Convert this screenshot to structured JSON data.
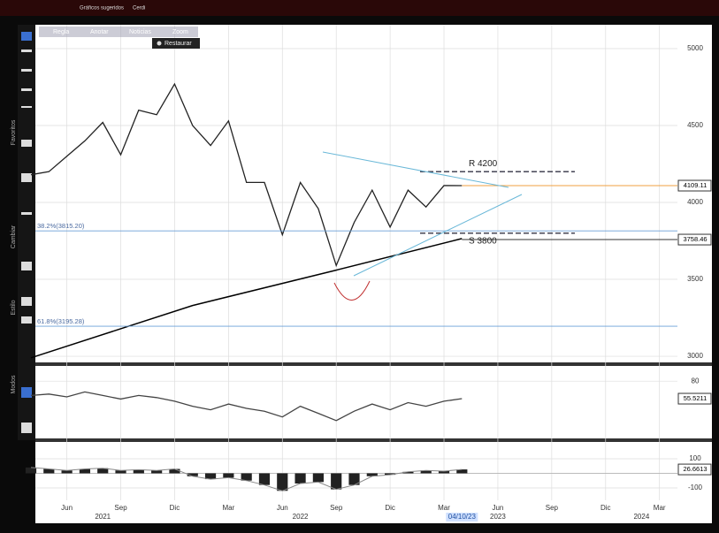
{
  "ui": {
    "tabs": [
      "Gráficos sugeridos",
      "Cerdi"
    ],
    "tools": [
      "Regla",
      "Anotar",
      "Noticias",
      "Zoom"
    ],
    "restore": "Restaurar",
    "side_labels": [
      "Favoritos",
      "Cambiar",
      "Estilo",
      "Modos"
    ],
    "cursor_date": "04/10/23"
  },
  "chart_data": [
    {
      "type": "line",
      "color": "#222222",
      "x": [
        "2021-04",
        "2021-05",
        "2021-06",
        "2021-07",
        "2021-08",
        "2021-09",
        "2021-10",
        "2021-11",
        "2021-12",
        "2022-01",
        "2022-02",
        "2022-03",
        "2022-04",
        "2022-05",
        "2022-06",
        "2022-07",
        "2022-08",
        "2022-09",
        "2022-10",
        "2022-11",
        "2022-12",
        "2023-01",
        "2023-02",
        "2023-03",
        "2023-04"
      ],
      "values": [
        4180,
        4200,
        4300,
        4400,
        4520,
        4310,
        4600,
        4570,
        4770,
        4500,
        4370,
        4530,
        4130,
        4130,
        3790,
        4130,
        3960,
        3590,
        3870,
        4080,
        3840,
        4080,
        3970,
        4110,
        4109.11
      ],
      "xlim": [
        "2021-04",
        "2024-04"
      ],
      "xticks": [
        {
          "value": "2021-06",
          "label": "Jun"
        },
        {
          "value": "2021-09",
          "label": "Sep"
        },
        {
          "value": "2021-12",
          "label": "Dic"
        },
        {
          "value": "2022-03",
          "label": "Mar"
        },
        {
          "value": "2022-06",
          "label": "Jun"
        },
        {
          "value": "2022-09",
          "label": "Sep"
        },
        {
          "value": "2022-12",
          "label": "Dic"
        },
        {
          "value": "2023-03",
          "label": "Mar"
        },
        {
          "value": "2023-06",
          "label": "Jun"
        },
        {
          "value": "2023-09",
          "label": "Sep"
        },
        {
          "value": "2023-12",
          "label": "Dic"
        },
        {
          "value": "2024-03",
          "label": "Mar"
        }
      ],
      "years": [
        {
          "value": "2021-08",
          "label": "2021"
        },
        {
          "value": "2022-07",
          "label": "2022"
        },
        {
          "value": "2023-06",
          "label": "2023"
        },
        {
          "value": "2024-02",
          "label": "2024"
        }
      ],
      "ylim": [
        2960,
        5155
      ],
      "yticks": [
        3000,
        3500,
        4000,
        4500,
        5000
      ],
      "grid": true,
      "ma": {
        "x": [
          "2021-04",
          "2022-01",
          "2022-09",
          "2023-04"
        ],
        "values": [
          2990,
          3330,
          3560,
          3765
        ],
        "color": "#000000"
      },
      "levels": [
        {
          "value": 4109.11,
          "color": "#f0a040"
        },
        {
          "value": 3758.46,
          "color": "#333333"
        }
      ],
      "fib": [
        {
          "value": 3815.2,
          "label": "38.2%(3815.20)"
        },
        {
          "value": 3195.28,
          "label": "61.8%(3195.28)"
        }
      ],
      "annotations": [
        {
          "value": 4200,
          "label": "R 4200"
        },
        {
          "value": 3800,
          "label": "S 3800"
        }
      ]
    },
    {
      "type": "line",
      "color": "#444444",
      "x": [
        "2021-04",
        "2021-05",
        "2021-06",
        "2021-07",
        "2021-08",
        "2021-09",
        "2021-10",
        "2021-11",
        "2021-12",
        "2022-01",
        "2022-02",
        "2022-03",
        "2022-04",
        "2022-05",
        "2022-06",
        "2022-07",
        "2022-08",
        "2022-09",
        "2022-10",
        "2022-11",
        "2022-12",
        "2023-01",
        "2023-02",
        "2023-03",
        "2023-04"
      ],
      "values": [
        60,
        62,
        58,
        65,
        60,
        55,
        60,
        57,
        52,
        45,
        40,
        48,
        42,
        38,
        30,
        45,
        35,
        25,
        38,
        48,
        40,
        50,
        45,
        52,
        55.5211
      ],
      "ylim": [
        0,
        100
      ],
      "yticks": [
        80
      ]
    },
    {
      "type": "bar",
      "color": "#222222",
      "x": [
        "2021-04",
        "2021-05",
        "2021-06",
        "2021-07",
        "2021-08",
        "2021-09",
        "2021-10",
        "2021-11",
        "2021-12",
        "2022-01",
        "2022-02",
        "2022-03",
        "2022-04",
        "2022-05",
        "2022-06",
        "2022-07",
        "2022-08",
        "2022-09",
        "2022-10",
        "2022-11",
        "2022-12",
        "2023-01",
        "2023-02",
        "2023-03",
        "2023-04"
      ],
      "values": [
        40,
        30,
        20,
        30,
        35,
        20,
        25,
        20,
        30,
        -20,
        -40,
        -30,
        -50,
        -80,
        -120,
        -70,
        -60,
        -110,
        -80,
        -20,
        -10,
        10,
        20,
        15,
        26.6613
      ],
      "ylim": [
        -185,
        215
      ],
      "yticks": [
        100,
        -100
      ]
    }
  ]
}
